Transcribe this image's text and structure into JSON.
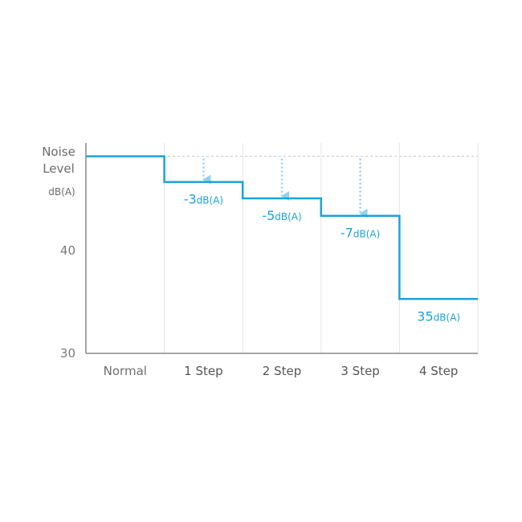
{
  "chart_data": {
    "type": "line",
    "subtype": "step",
    "title": "",
    "ylabel": "Noise Level",
    "ylabel_line1": "Noise",
    "ylabel_line2": "Level",
    "ylabel_unit": "dB(A)",
    "xlabel": "",
    "categories": [
      "Normal",
      "1 Step",
      "2 Step",
      "3 Step",
      "4 Step"
    ],
    "ylim": [
      30,
      50.5
    ],
    "yticks": [
      {
        "value": 40,
        "label": "40"
      },
      {
        "value": 30,
        "label": "30"
      }
    ],
    "baseline_value": 49.2,
    "values": [
      49.2,
      46.7,
      45.1,
      43.4,
      35.3
    ],
    "value_labels": [
      null,
      {
        "number": "-3",
        "unit": "dB(A)"
      },
      {
        "number": "-5",
        "unit": "dB(A)"
      },
      {
        "number": "-7",
        "unit": "dB(A)"
      },
      {
        "number": "35",
        "unit": "dB(A)"
      }
    ],
    "reduction_arrows_on": [
      "1 Step",
      "2 Step",
      "3 Step"
    ],
    "grid": "vertical",
    "colors": {
      "line": "#1aa3d8",
      "arrow": "#8fd3f0",
      "baseline": "#c8c8c8",
      "grid": "#e6e6e6",
      "axis": "#8a8a8a"
    }
  }
}
